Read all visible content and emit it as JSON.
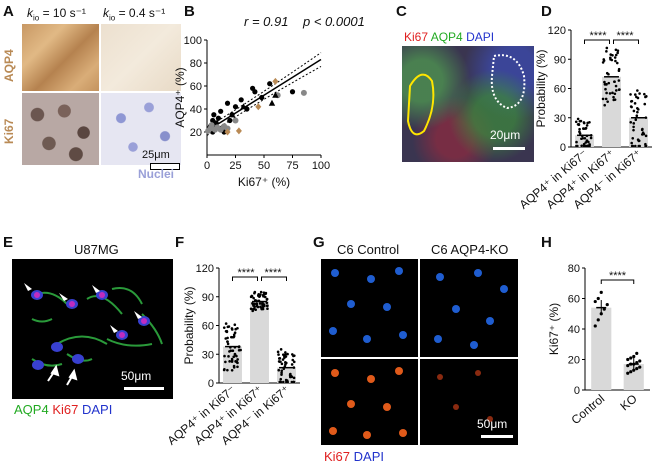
{
  "panels": {
    "A": {
      "label": "A",
      "kio_left": "k",
      "kio_left_sub": "io",
      "kio_left_val": " = 10 s⁻¹",
      "kio_right": "k",
      "kio_right_sub": "io",
      "kio_right_val": " = 0.4 s⁻¹",
      "row1": "AQP4",
      "row2": "Ki67",
      "scale": "25μm",
      "nuclei": "Nuclei"
    },
    "B": {
      "label": "B",
      "r_text": "r = 0.91",
      "p_text": "p < 0.0001",
      "xlabel": "Ki67⁺ (%)",
      "ylabel": "AQP4⁺ (%)"
    },
    "C": {
      "label": "C",
      "ki67": "Ki67",
      "aqp4": "AQP4",
      "dapi": "DAPI",
      "scale": "20μm"
    },
    "D": {
      "label": "D",
      "ylabel": "Probability (%)",
      "sig1": "****",
      "sig2": "****",
      "cats": [
        "AQP4⁺ in Ki67⁻",
        "AQP4⁺ in Ki67⁺",
        "AQP4⁻ in Ki67⁺"
      ]
    },
    "E": {
      "label": "E",
      "title": "U87MG",
      "scale": "50μm",
      "aqp4": "AQP4",
      "ki67": "Ki67",
      "dapi": "DAPI"
    },
    "F": {
      "label": "F",
      "ylabel": "Probability (%)",
      "sig1": "****",
      "sig2": "****",
      "cats": [
        "AQP4⁺ in Ki67⁻",
        "AQP4⁺ in Ki67⁺",
        "AQP4⁻ in Ki67⁺"
      ]
    },
    "G": {
      "label": "G",
      "col1": "C6 Control",
      "col2": "C6 AQP4-KO",
      "scale": "50μm",
      "ki67": "Ki67",
      "dapi": "DAPI"
    },
    "H": {
      "label": "H",
      "ylabel": "Ki67⁺ (%)",
      "sig": "****",
      "cats": [
        "Control",
        "KO"
      ]
    }
  },
  "colors": {
    "bar": "#d9d9d9",
    "red": "#e02020",
    "green": "#22aa22",
    "blue": "#2233cc",
    "tan": "#b98a55",
    "lavender": "#9aa0d8"
  },
  "chart_data": [
    {
      "type": "scatter",
      "panel": "B",
      "xlabel": "Ki67⁺ (%)",
      "ylabel": "AQP4⁺ (%)",
      "xlim": [
        0,
        100
      ],
      "ylim": [
        0,
        100
      ],
      "xticks": [
        0,
        25,
        50,
        75,
        100
      ],
      "yticks": [
        20,
        40,
        60,
        80,
        100
      ],
      "series": [
        {
          "marker": "circle-black",
          "points": [
            [
              2,
              22
            ],
            [
              3,
              25
            ],
            [
              5,
              30
            ],
            [
              6,
              35
            ],
            [
              8,
              28
            ],
            [
              10,
              32
            ],
            [
              12,
              38
            ],
            [
              15,
              20
            ],
            [
              18,
              45
            ],
            [
              20,
              30
            ],
            [
              22,
              35
            ],
            [
              25,
              42
            ],
            [
              30,
              48
            ],
            [
              35,
              40
            ],
            [
              40,
              58
            ],
            [
              42,
              55
            ],
            [
              48,
              50
            ],
            [
              55,
              62
            ],
            [
              75,
              55
            ],
            [
              5,
              20
            ]
          ]
        },
        {
          "marker": "circle-grey",
          "points": [
            [
              1,
              21
            ],
            [
              3,
              23
            ],
            [
              4,
              26
            ],
            [
              7,
              22
            ],
            [
              9,
              24
            ],
            [
              12,
              22
            ],
            [
              15,
              25
            ],
            [
              18,
              23
            ],
            [
              25,
              30
            ],
            [
              62,
              52
            ],
            [
              85,
              54
            ]
          ]
        },
        {
          "marker": "triangle",
          "points": [
            [
              22,
              35
            ],
            [
              32,
              42
            ],
            [
              57,
              45
            ],
            [
              60,
              52
            ]
          ]
        },
        {
          "marker": "diamond",
          "points": [
            [
              18,
              20
            ],
            [
              28,
              21
            ],
            [
              45,
              42
            ],
            [
              60,
              64
            ]
          ]
        }
      ],
      "fit": {
        "slope": 0.62,
        "intercept": 21
      }
    },
    {
      "type": "bar",
      "panel": "D",
      "categories": [
        "AQP4⁺ in Ki67⁻",
        "AQP4⁺ in Ki67⁺",
        "AQP4⁻ in Ki67⁺"
      ],
      "values": [
        12,
        72,
        30
      ],
      "ylim": [
        0,
        120
      ],
      "yticks": [
        0,
        30,
        60,
        90,
        120
      ]
    },
    {
      "type": "bar",
      "panel": "F",
      "categories": [
        "AQP4⁺ in Ki67⁻",
        "AQP4⁺ in Ki67⁺",
        "AQP4⁻ in Ki67⁺"
      ],
      "values": [
        38,
        85,
        16
      ],
      "ylim": [
        0,
        120
      ],
      "yticks": [
        0,
        30,
        60,
        90,
        120
      ]
    },
    {
      "type": "bar",
      "panel": "H",
      "categories": [
        "Control",
        "KO"
      ],
      "values": [
        54,
        17
      ],
      "ylim": [
        0,
        80
      ],
      "yticks": [
        0,
        20,
        40,
        60,
        80
      ]
    }
  ]
}
